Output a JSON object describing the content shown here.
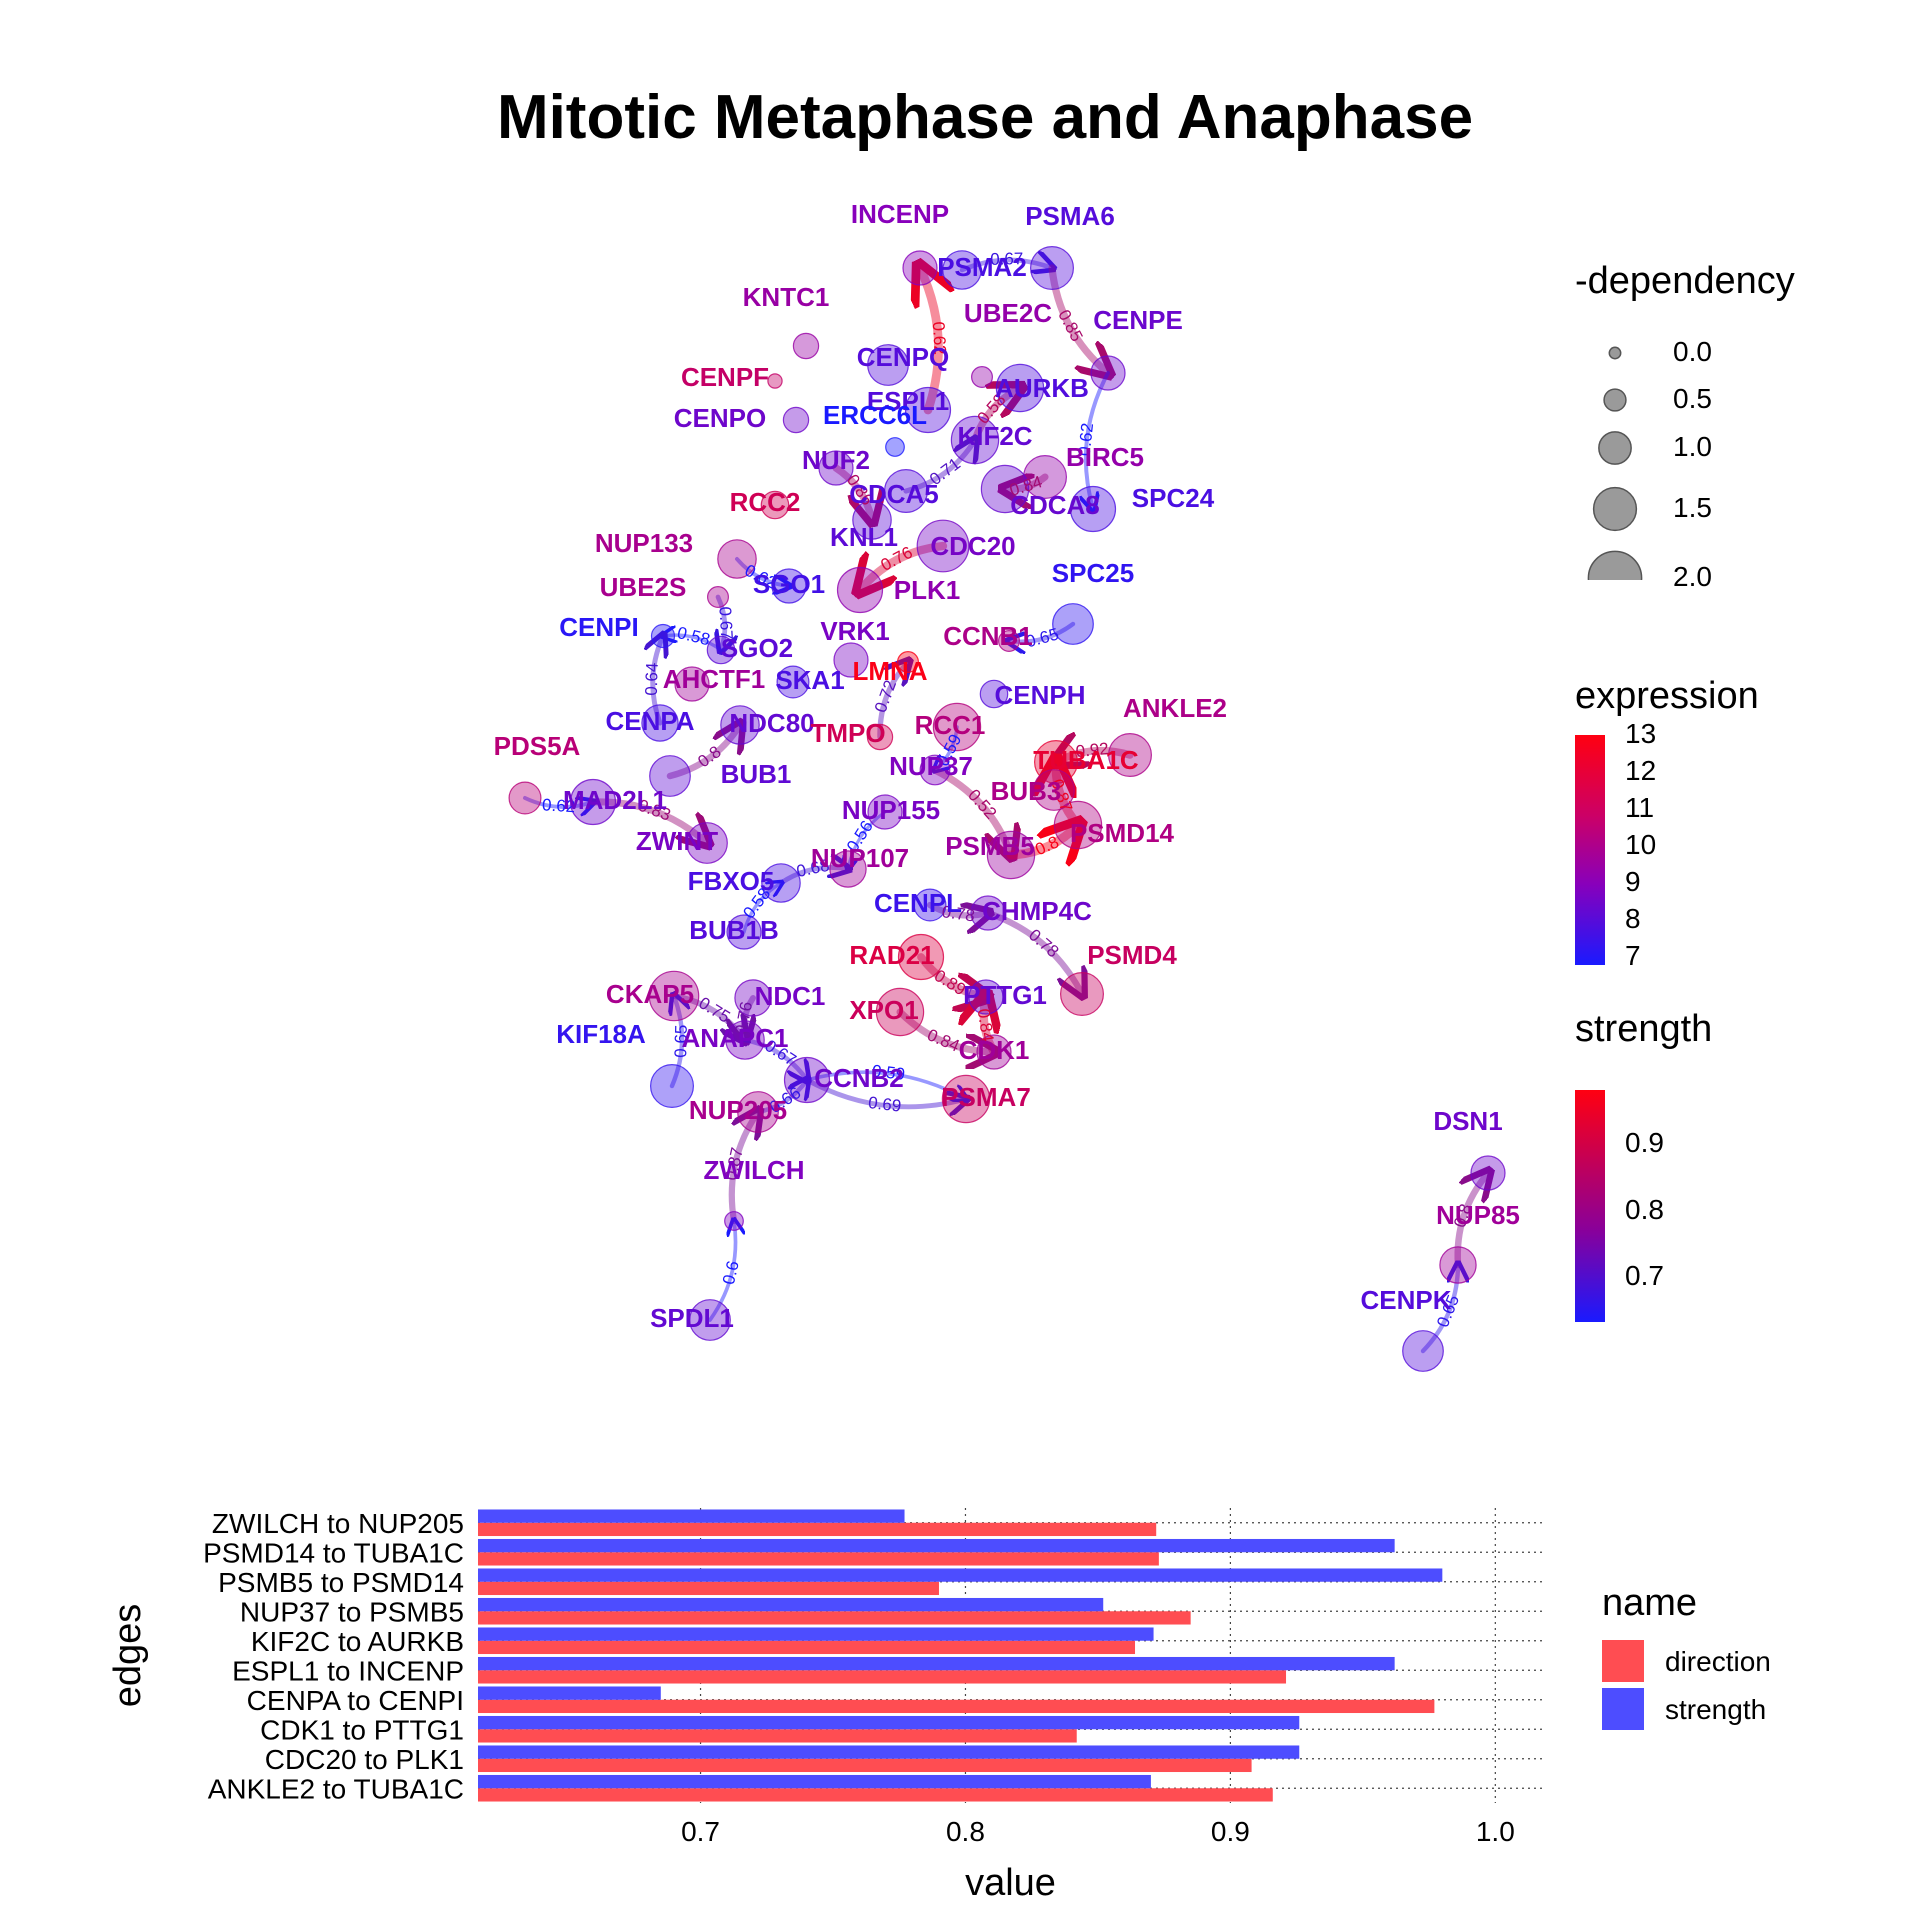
{
  "title": "Mitotic Metaphase and Anaphase",
  "legends": {
    "dependency": {
      "title": "-dependency",
      "labels": [
        "0.0",
        "0.5",
        "1.0",
        "1.5",
        "2.0"
      ],
      "values": [
        0.0,
        0.5,
        1.0,
        1.5,
        2.0
      ]
    },
    "expression": {
      "title": "expression",
      "labels": [
        "13",
        "12",
        "11",
        "10",
        "9",
        "8",
        "7"
      ],
      "values": [
        13,
        12,
        11,
        10,
        9,
        8,
        7
      ],
      "low_color": "#1a1aff",
      "mid_color": "#8800bb",
      "high_color": "#ff0011"
    },
    "strength": {
      "title": "strength",
      "labels": [
        "0.9",
        "0.8",
        "0.7"
      ],
      "values": [
        0.9,
        0.8,
        0.7
      ],
      "low_color": "#1a1aff",
      "high_color": "#ff0011"
    },
    "name": {
      "title": "name",
      "items": [
        {
          "label": "direction",
          "color": "#ff4d52"
        },
        {
          "label": "strength",
          "color": "#4d4dff"
        }
      ]
    }
  },
  "chart_data": [
    {
      "type": "network",
      "title": "Mitotic Metaphase and Anaphase",
      "nodes": [
        {
          "id": "INCENP",
          "expression": 10.0,
          "dependency": 1.0
        },
        {
          "id": "PSMA6",
          "expression": 8.6,
          "dependency": 1.4
        },
        {
          "id": "PSMA2",
          "expression": 8.3,
          "dependency": 1.2
        },
        {
          "id": "KNTC1",
          "expression": 10.4,
          "dependency": 0.6
        },
        {
          "id": "UBE2C",
          "expression": 10.3,
          "dependency": 0.4
        },
        {
          "id": "CENPE",
          "expression": 9.2,
          "dependency": 1.0
        },
        {
          "id": "CENPQ",
          "expression": 8.6,
          "dependency": 1.3
        },
        {
          "id": "CENPF",
          "expression": 11.5,
          "dependency": 0.1
        },
        {
          "id": "AURKB",
          "expression": 8.5,
          "dependency": 1.6
        },
        {
          "id": "ESPL1",
          "expression": 8.6,
          "dependency": 1.5
        },
        {
          "id": "CENPO",
          "expression": 9.3,
          "dependency": 0.6
        },
        {
          "id": "ERCC6L",
          "expression": 7.0,
          "dependency": 0.3
        },
        {
          "id": "KIF2C",
          "expression": 9.0,
          "dependency": 1.6
        },
        {
          "id": "NUF2",
          "expression": 9.3,
          "dependency": 1.0
        },
        {
          "id": "BIRC5",
          "expression": 10.3,
          "dependency": 1.4
        },
        {
          "id": "SPC24",
          "expression": 8.3,
          "dependency": 1.5
        },
        {
          "id": "CDCA5",
          "expression": 8.6,
          "dependency": 1.4
        },
        {
          "id": "CDCA8",
          "expression": 9.1,
          "dependency": 1.6
        },
        {
          "id": "RCC2",
          "expression": 11.8,
          "dependency": 0.7
        },
        {
          "id": "KNL1",
          "expression": 8.8,
          "dependency": 1.2
        },
        {
          "id": "NUP133",
          "expression": 10.8,
          "dependency": 1.2
        },
        {
          "id": "CDC20",
          "expression": 9.5,
          "dependency": 1.8
        },
        {
          "id": "UBE2S",
          "expression": 10.8,
          "dependency": 0.4
        },
        {
          "id": "SGO1",
          "expression": 8.1,
          "dependency": 1.0
        },
        {
          "id": "PLK1",
          "expression": 10.2,
          "dependency": 1.5
        },
        {
          "id": "SPC25",
          "expression": 7.6,
          "dependency": 1.3
        },
        {
          "id": "CENPI",
          "expression": 7.4,
          "dependency": 0.5
        },
        {
          "id": "SGO2",
          "expression": 8.8,
          "dependency": 0.7
        },
        {
          "id": "VRK1",
          "expression": 9.6,
          "dependency": 1.0
        },
        {
          "id": "CCNB1",
          "expression": 10.9,
          "dependency": 0.4
        },
        {
          "id": "AHCTF1",
          "expression": 10.6,
          "dependency": 1.0
        },
        {
          "id": "SKA1",
          "expression": 8.3,
          "dependency": 0.9
        },
        {
          "id": "LMNA",
          "expression": 12.9,
          "dependency": 0.4
        },
        {
          "id": "CENPH",
          "expression": 8.6,
          "dependency": 0.7
        },
        {
          "id": "ANKLE2",
          "expression": 10.9,
          "dependency": 1.4
        },
        {
          "id": "CENPA",
          "expression": 8.3,
          "dependency": 1.1
        },
        {
          "id": "NDC80",
          "expression": 9.0,
          "dependency": 1.2
        },
        {
          "id": "RCC1",
          "expression": 11.1,
          "dependency": 1.6
        },
        {
          "id": "TMPO",
          "expression": 11.8,
          "dependency": 0.6
        },
        {
          "id": "PDS5A",
          "expression": 11.2,
          "dependency": 0.9
        },
        {
          "id": "TUBA1C",
          "expression": 12.4,
          "dependency": 1.4
        },
        {
          "id": "BUB1",
          "expression": 8.9,
          "dependency": 1.3
        },
        {
          "id": "NUP37",
          "expression": 9.8,
          "dependency": 0.8
        },
        {
          "id": "MAD2L1",
          "expression": 9.3,
          "dependency": 1.5
        },
        {
          "id": "BUB3",
          "expression": 10.9,
          "dependency": 1.3
        },
        {
          "id": "NUP155",
          "expression": 9.6,
          "dependency": 1.0
        },
        {
          "id": "PSMD14",
          "expression": 11.0,
          "dependency": 1.6
        },
        {
          "id": "ZWINT",
          "expression": 9.6,
          "dependency": 1.3
        },
        {
          "id": "PSMB5",
          "expression": 10.5,
          "dependency": 1.6
        },
        {
          "id": "NUP107",
          "expression": 10.6,
          "dependency": 1.1
        },
        {
          "id": "FBXO5",
          "expression": 8.3,
          "dependency": 1.2
        },
        {
          "id": "CENPL",
          "expression": 7.9,
          "dependency": 0.9
        },
        {
          "id": "CHMP4C",
          "expression": 9.3,
          "dependency": 1.0
        },
        {
          "id": "BUB1B",
          "expression": 8.6,
          "dependency": 1.0
        },
        {
          "id": "RAD21",
          "expression": 12.1,
          "dependency": 1.5
        },
        {
          "id": "PSMD4",
          "expression": 11.6,
          "dependency": 1.4
        },
        {
          "id": "PTTG1",
          "expression": 9.0,
          "dependency": 1.0
        },
        {
          "id": "CKAP5",
          "expression": 10.8,
          "dependency": 1.7
        },
        {
          "id": "NDC1",
          "expression": 9.5,
          "dependency": 1.1
        },
        {
          "id": "XPO1",
          "expression": 11.7,
          "dependency": 1.6
        },
        {
          "id": "KIF18A",
          "expression": 7.7,
          "dependency": 1.4
        },
        {
          "id": "ANAPC1",
          "expression": 9.6,
          "dependency": 1.2
        },
        {
          "id": "CDK1",
          "expression": 10.6,
          "dependency": 1.0
        },
        {
          "id": "CCNB2",
          "expression": 9.3,
          "dependency": 1.5
        },
        {
          "id": "PSMA7",
          "expression": 11.6,
          "dependency": 1.6
        },
        {
          "id": "NUP205",
          "expression": 10.8,
          "dependency": 1.3
        },
        {
          "id": "ZWILCH",
          "expression": 9.8,
          "dependency": 0.3
        },
        {
          "id": "SPDL1",
          "expression": 9.0,
          "dependency": 1.3
        },
        {
          "id": "DSN1",
          "expression": 9.3,
          "dependency": 1.0
        },
        {
          "id": "NUP85",
          "expression": 10.6,
          "dependency": 1.1
        },
        {
          "id": "CENPK",
          "expression": 8.6,
          "dependency": 1.3
        }
      ],
      "edges": [
        {
          "from": "ESPL1",
          "to": "INCENP",
          "strength": 0.96,
          "label": "0.62"
        },
        {
          "from": "PSMA2",
          "to": "PSMA6",
          "strength": 0.67,
          "label": "0.67"
        },
        {
          "from": "PSMA6",
          "to": "CENPE",
          "strength": 0.85,
          "label": "0.85"
        },
        {
          "from": "KIF2C",
          "to": "AURKB",
          "strength": 0.87,
          "label": "0.58"
        },
        {
          "from": "CENPE",
          "to": "SPC24",
          "strength": 0.62,
          "label": "0.62"
        },
        {
          "from": "BIRC5",
          "to": "CDCA8",
          "strength": 0.84,
          "label": "0.84"
        },
        {
          "from": "CDCA5",
          "to": "KIF2C",
          "strength": 0.71,
          "label": "0.71"
        },
        {
          "from": "NUF2",
          "to": "KNL1",
          "strength": 0.86,
          "label": "0.86"
        },
        {
          "from": "CDC20",
          "to": "PLK1",
          "strength": 0.93,
          "label": "0.76"
        },
        {
          "from": "SPC25",
          "to": "CCNB1",
          "strength": 0.65,
          "label": "0.65"
        },
        {
          "from": "NUP133",
          "to": "SGO1",
          "strength": 0.62,
          "label": "0.62"
        },
        {
          "from": "UBE2S",
          "to": "SGO2",
          "strength": 0.67,
          "label": "0.67"
        },
        {
          "from": "SGO2",
          "to": "CENPI",
          "strength": 0.58,
          "label": "0.58"
        },
        {
          "from": "CENPA",
          "to": "CENPI",
          "strength": 0.69,
          "label": "0.64"
        },
        {
          "from": "PDS5A",
          "to": "MAD2L1",
          "strength": 0.62,
          "label": "0.62"
        },
        {
          "from": "MAD2L1",
          "to": "ZWINT",
          "strength": 0.83,
          "label": "0.83"
        },
        {
          "from": "BUB1",
          "to": "NDC80",
          "strength": 0.8,
          "label": "0.8"
        },
        {
          "from": "RCC1",
          "to": "NUP37",
          "strength": 0.59,
          "label": "0.59"
        },
        {
          "from": "ANKLE2",
          "to": "TUBA1C",
          "strength": 0.87,
          "label": "0.92"
        },
        {
          "from": "NUP37",
          "to": "PSMB5",
          "strength": 0.85,
          "label": "0.52"
        },
        {
          "from": "PSMB5",
          "to": "PSMD14",
          "strength": 0.98,
          "label": "0.8"
        },
        {
          "from": "PSMD14",
          "to": "TUBA1C",
          "strength": 0.96,
          "label": "0.87"
        },
        {
          "from": "NUP155",
          "to": "NUP107",
          "strength": 0.56,
          "label": "0.56"
        },
        {
          "from": "FBXO5",
          "to": "NUP107",
          "strength": 0.68,
          "label": "0.68"
        },
        {
          "from": "CENPL",
          "to": "CHMP4C",
          "strength": 0.78,
          "label": "0.78"
        },
        {
          "from": "CHMP4C",
          "to": "PSMD4",
          "strength": 0.78,
          "label": "0.78"
        },
        {
          "from": "RAD21",
          "to": "PTTG1",
          "strength": 0.89,
          "label": "0.89"
        },
        {
          "from": "CDK1",
          "to": "PTTG1",
          "strength": 0.93,
          "label": "0.84"
        },
        {
          "from": "XPO1",
          "to": "CDK1",
          "strength": 0.84,
          "label": "0.84"
        },
        {
          "from": "CKAP5",
          "to": "ANAPC1",
          "strength": 0.75,
          "label": "0.75"
        },
        {
          "from": "NDC1",
          "to": "ANAPC1",
          "strength": 0.76,
          "label": "0.76"
        },
        {
          "from": "ANAPC1",
          "to": "CCNB2",
          "strength": 0.67,
          "label": "0.67"
        },
        {
          "from": "CCNB2",
          "to": "PSMA7",
          "strength": 0.69,
          "label": "0.69"
        },
        {
          "from": "CCNB2",
          "to": "PSMA7",
          "strength": 0.59,
          "label": "0.59"
        },
        {
          "from": "NUP205",
          "to": "CCNB2",
          "strength": 0.66,
          "label": "0.66"
        },
        {
          "from": "ZWILCH",
          "to": "NUP205",
          "strength": 0.78,
          "label": "0.87"
        },
        {
          "from": "SPDL1",
          "to": "ZWILCH",
          "strength": 0.6,
          "label": "0.6"
        },
        {
          "from": "NUP85",
          "to": "DSN1",
          "strength": 0.8,
          "label": "0.8"
        },
        {
          "from": "CENPK",
          "to": "NUP85",
          "strength": 0.65,
          "label": "0.65"
        },
        {
          "from": "BUB1B",
          "to": "FBXO5",
          "strength": 0.58,
          "label": "0.58"
        },
        {
          "from": "KIF18A",
          "to": "CKAP5",
          "strength": 0.65,
          "label": "0.65"
        },
        {
          "from": "TMPO",
          "to": "LMNA",
          "strength": 0.72,
          "label": "0.72"
        }
      ]
    },
    {
      "type": "bar",
      "orientation": "horizontal",
      "categories": [
        "ANKLE2 to TUBA1C",
        "CDC20 to PLK1",
        "CDK1 to PTTG1",
        "CENPA to CENPI",
        "ESPL1 to INCENP",
        "KIF2C to AURKB",
        "NUP37 to PSMB5",
        "PSMB5 to PSMD14",
        "PSMD14 to TUBA1C",
        "ZWILCH to NUP205"
      ],
      "series": [
        {
          "name": "direction",
          "color": "#ff4d52",
          "values": [
            0.916,
            0.908,
            0.842,
            0.977,
            0.921,
            0.864,
            0.885,
            0.79,
            0.873,
            0.872
          ]
        },
        {
          "name": "strength",
          "color": "#4d4dff",
          "values": [
            0.87,
            0.926,
            0.926,
            0.685,
            0.962,
            0.871,
            0.852,
            0.98,
            0.962,
            0.777
          ]
        }
      ],
      "xlabel": "value",
      "ylabel": "edges",
      "xticks": [
        "0.7",
        "0.8",
        "0.9",
        "1.0"
      ],
      "xlim": [
        0.616,
        1.018
      ],
      "legend_title": "name"
    }
  ]
}
